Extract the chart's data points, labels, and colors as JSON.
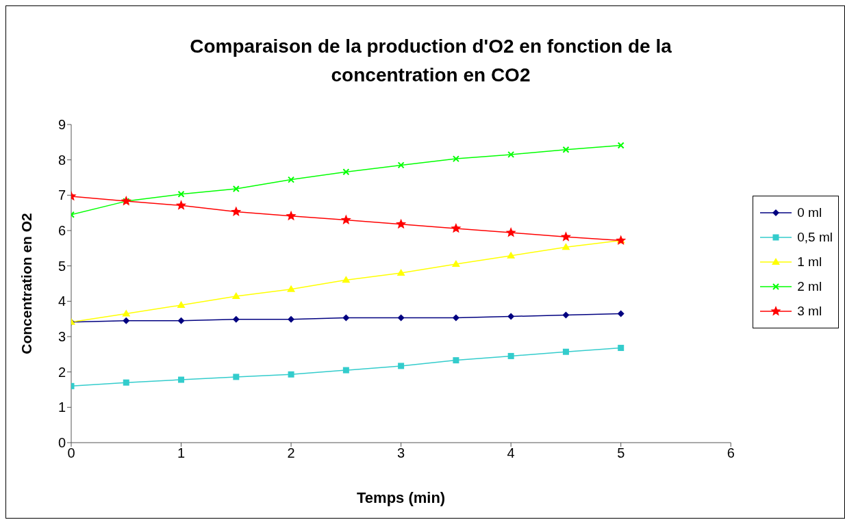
{
  "chart_data": {
    "type": "line",
    "title": "Comparaison de la production d'O2 en fonction de la concentration en CO2",
    "xlabel": "Temps (min)",
    "ylabel": "Concentration en O2",
    "x": [
      0,
      0.5,
      1,
      1.5,
      2,
      2.5,
      3,
      3.5,
      4,
      4.5,
      5
    ],
    "series": [
      {
        "name": "0 ml",
        "color": "#000080",
        "marker": "diamond",
        "values": [
          3.41,
          3.45,
          3.45,
          3.49,
          3.49,
          3.53,
          3.53,
          3.53,
          3.57,
          3.61,
          3.65
        ]
      },
      {
        "name": "0,5 ml",
        "color": "#33cccc",
        "marker": "square",
        "values": [
          1.6,
          1.7,
          1.78,
          1.86,
          1.93,
          2.05,
          2.17,
          2.33,
          2.45,
          2.57,
          2.68
        ]
      },
      {
        "name": "1 ml",
        "color": "#ffff00",
        "marker": "triangle",
        "values": [
          3.41,
          3.65,
          3.89,
          4.14,
          4.34,
          4.6,
          4.8,
          5.05,
          5.29,
          5.53,
          5.72
        ]
      },
      {
        "name": "2 ml",
        "color": "#00ff00",
        "marker": "cross",
        "values": [
          6.45,
          6.83,
          7.03,
          7.18,
          7.44,
          7.66,
          7.85,
          8.03,
          8.15,
          8.29,
          8.41
        ]
      },
      {
        "name": "3 ml",
        "color": "#ff0000",
        "marker": "star",
        "values": [
          6.97,
          6.83,
          6.71,
          6.53,
          6.41,
          6.3,
          6.18,
          6.06,
          5.94,
          5.82,
          5.72
        ]
      }
    ],
    "xlim": [
      0,
      6
    ],
    "xticks": [
      0,
      1,
      2,
      3,
      4,
      5,
      6
    ],
    "ylim": [
      0,
      9
    ],
    "yticks": [
      0,
      1,
      2,
      3,
      4,
      5,
      6,
      7,
      8,
      9
    ],
    "grid": false,
    "legend": "right",
    "line_style": "solid"
  }
}
